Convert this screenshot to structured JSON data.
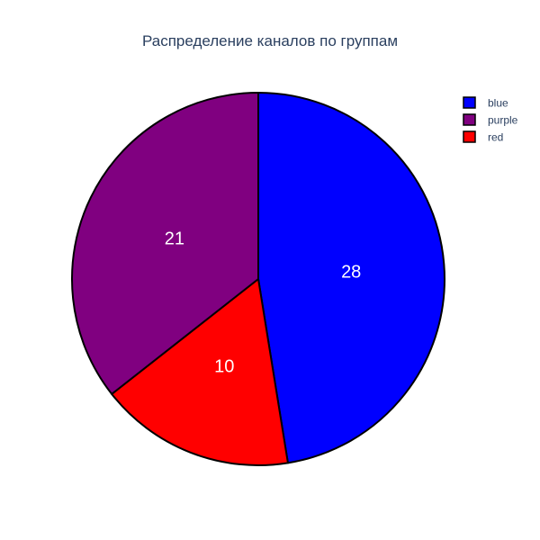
{
  "chart_data": {
    "type": "pie",
    "title": "Распределение каналов по группам",
    "categories": [
      "blue",
      "purple",
      "red"
    ],
    "values": [
      28,
      21,
      10
    ],
    "colors": [
      "#0000ff",
      "#800080",
      "#ff0000"
    ],
    "slice_order": [
      "blue",
      "red",
      "purple"
    ],
    "direction": "clockwise",
    "start_angle_deg": 90,
    "show_values": true,
    "legend": {
      "position": "top-right",
      "items": [
        "blue",
        "purple",
        "red"
      ]
    },
    "outline_color": "#000000"
  }
}
